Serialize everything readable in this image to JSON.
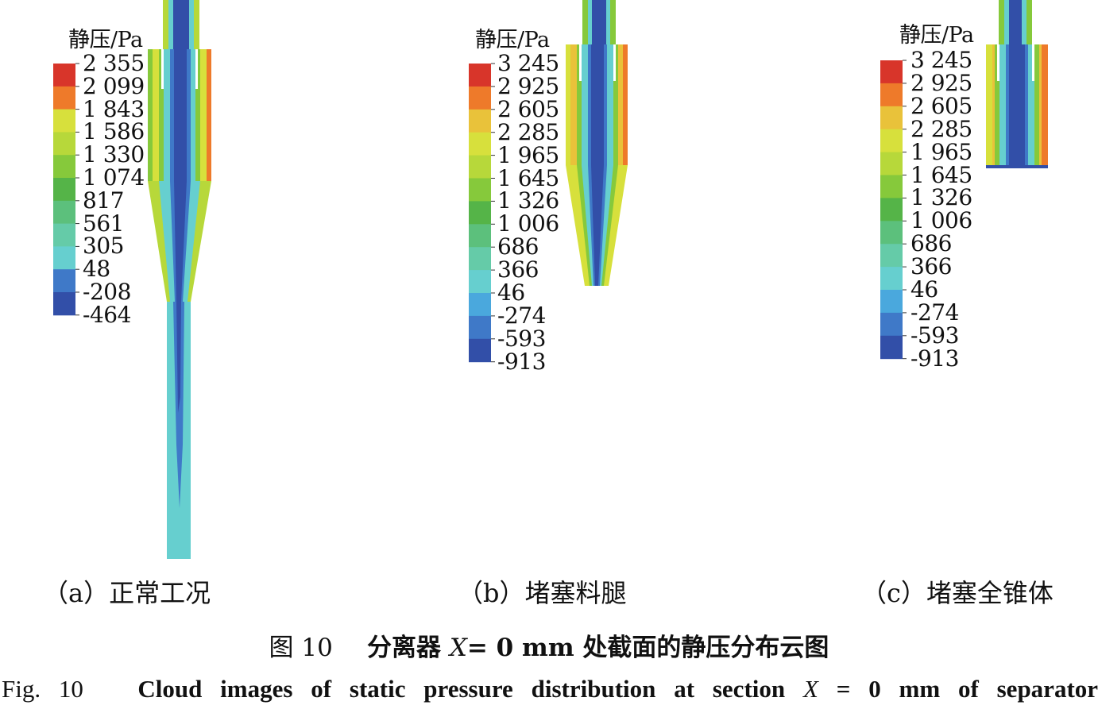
{
  "legend_title": "静压/Pa",
  "colors": [
    "#d8352a",
    "#ee7a2a",
    "#e9c23a",
    "#d7e03c",
    "#b7d83a",
    "#86c93b",
    "#55b448",
    "#5cc07c",
    "#65cba8",
    "#66cfcf",
    "#4aa8dd",
    "#3f79c8",
    "#324fa8"
  ],
  "panels": [
    {
      "id": "a",
      "caption": "（a）正常工况",
      "scale_values": [
        "2 355",
        "2 099",
        "1 843",
        "1 586",
        "1 330",
        "1 074",
        "817",
        "561",
        "305",
        "48",
        "-208",
        "-464"
      ]
    },
    {
      "id": "b",
      "caption": "（b）堵塞料腿",
      "scale_values": [
        "3 245",
        "2 925",
        "2 605",
        "2 285",
        "1 965",
        "1 645",
        "1 326",
        "1 006",
        "686",
        "366",
        "46",
        "-274",
        "-593",
        "-913"
      ]
    },
    {
      "id": "c",
      "caption": "（c）堵塞全锥体",
      "scale_values": [
        "3 245",
        "2 925",
        "2 605",
        "2 285",
        "1 965",
        "1 645",
        "1 326",
        "1 006",
        "686",
        "366",
        "46",
        "-274",
        "-593",
        "-913"
      ]
    }
  ],
  "figure_caption_cn": {
    "number": "图 10",
    "text_before": "分离器",
    "var": "X",
    "text_after": "= 0 mm 处截面的静压分布云图"
  },
  "figure_caption_en": {
    "number": "Fig. 10",
    "text_before": "Cloud images of static pressure distribution at section",
    "var": "X",
    "text_after": "= 0 mm of separator"
  }
}
